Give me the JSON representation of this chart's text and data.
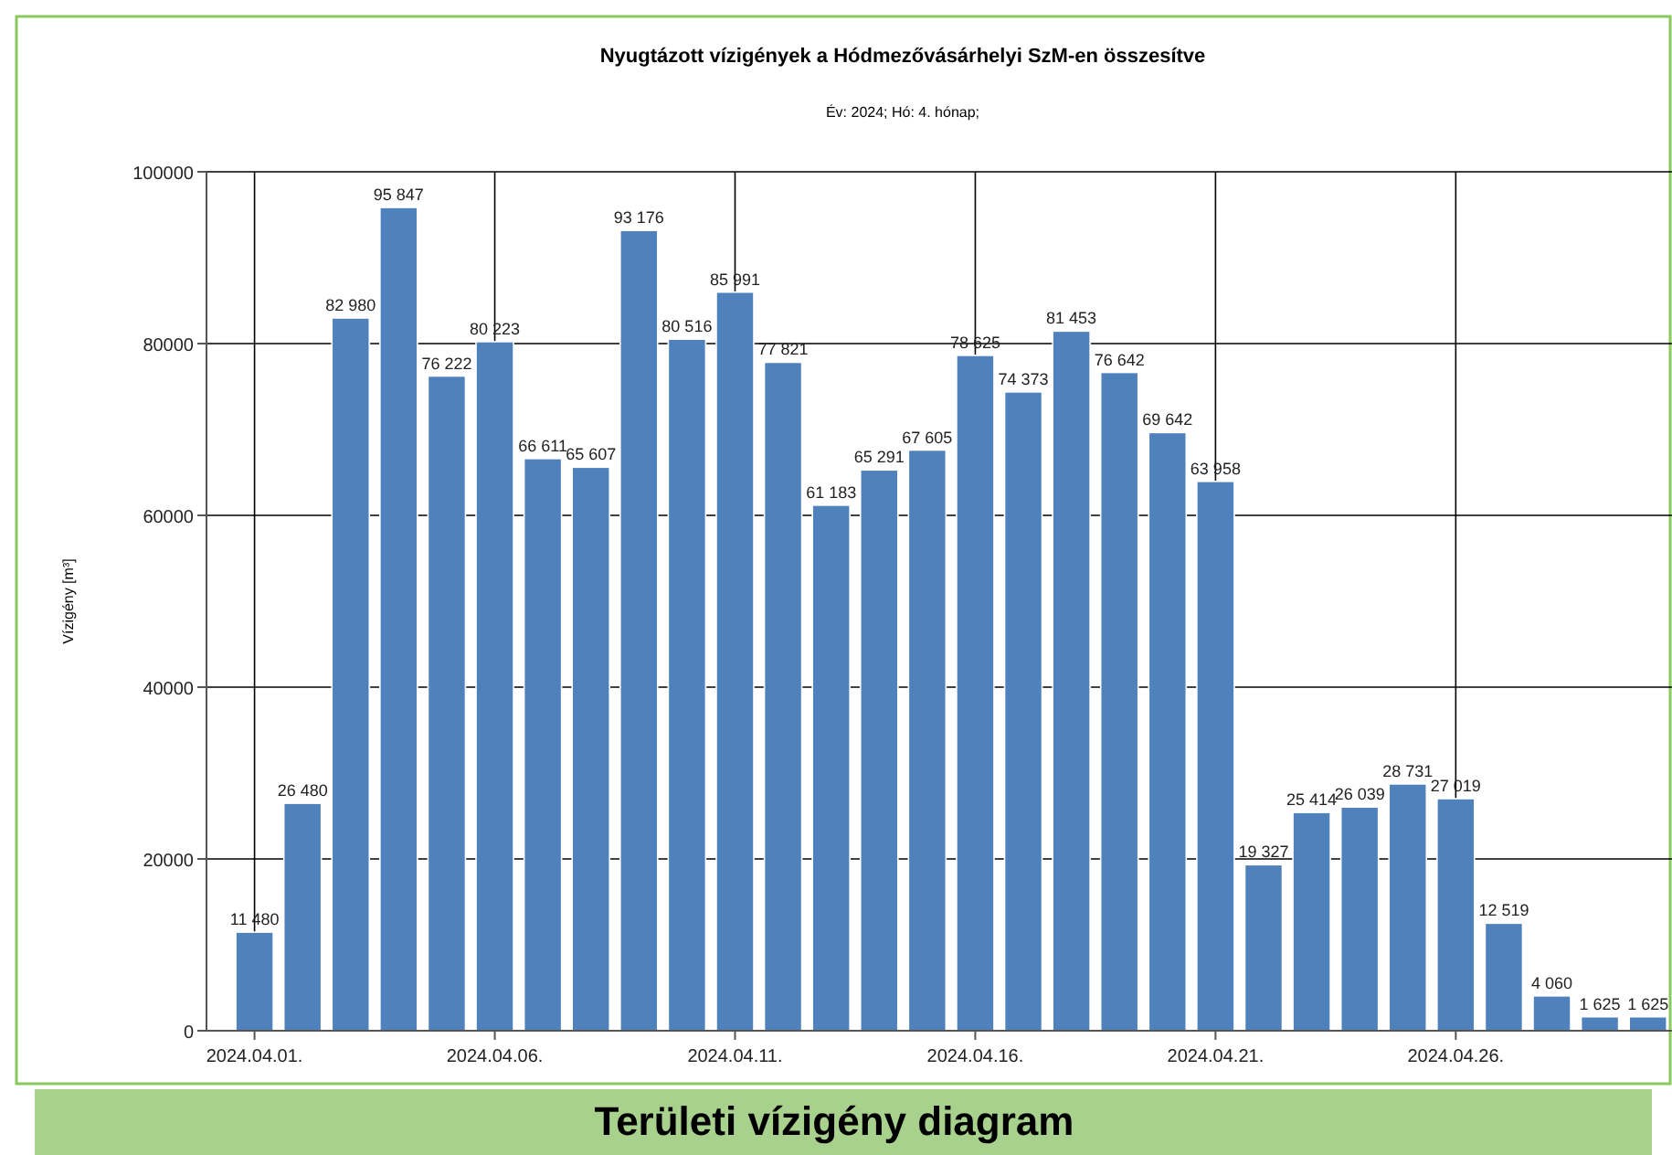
{
  "chart_data": {
    "type": "bar",
    "title": "Nyugtázott vízigények a Hódmezővásárhelyi SzM-en összesítve",
    "subtitle": "Év: 2024; Hó: 4. hónap;",
    "ylabel": "Vízigény [m³]",
    "categories": [
      "2024.04.01.",
      null,
      null,
      null,
      null,
      "2024.04.06.",
      null,
      null,
      null,
      null,
      "2024.04.11.",
      null,
      null,
      null,
      null,
      "2024.04.16.",
      null,
      null,
      null,
      null,
      "2024.04.21.",
      null,
      null,
      null,
      null,
      "2024.04.26.",
      null,
      null,
      null,
      null
    ],
    "values": [
      11480,
      26480,
      82980,
      95847,
      76222,
      80223,
      66611,
      65607,
      93176,
      80516,
      85991,
      77821,
      61183,
      65291,
      67605,
      78625,
      74373,
      81453,
      76642,
      69642,
      63958,
      19327,
      25414,
      26039,
      28731,
      27019,
      12519,
      4060,
      1625,
      1625
    ],
    "value_labels": [
      "11 480",
      "26 480",
      "82 980",
      "95 847",
      "76 222",
      "80 223",
      "66 611",
      "65 607",
      "93 176",
      "80 516",
      "85 991",
      "77 821",
      "61 183",
      "65 291",
      "67 605",
      "78 625",
      "74 373",
      "81 453",
      "76 642",
      "69 642",
      "63 958",
      "19 327",
      "25 414",
      "26 039",
      "28 731",
      "27 019",
      "12 519",
      "4 060",
      "1 625",
      "1 625"
    ],
    "color": "#4f81bd",
    "ylim": [
      0,
      100000
    ],
    "yticks": [
      0,
      20000,
      40000,
      60000,
      80000,
      100000
    ],
    "grid": true,
    "annotations": [
      "Területi vízigény diagram"
    ]
  }
}
